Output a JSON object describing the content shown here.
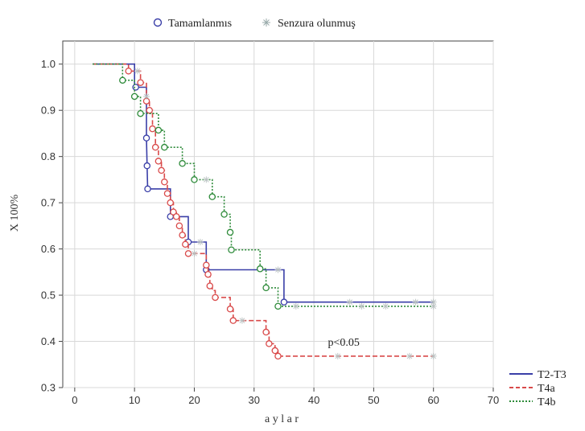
{
  "chart_data": {
    "type": "line",
    "subtype": "kaplan-meier",
    "title": "",
    "xlabel": "a y l a r",
    "ylabel": "X 100%",
    "xlim": [
      -2,
      70
    ],
    "ylim": [
      0.3,
      1.05
    ],
    "xticks": [
      0,
      10,
      20,
      30,
      40,
      50,
      60,
      70
    ],
    "yticks": [
      0.3,
      0.4,
      0.5,
      0.6,
      0.7,
      0.8,
      0.9,
      1.0
    ],
    "xtick_labels": [
      "0",
      "10",
      "20",
      "30",
      "40",
      "50",
      "60",
      "70"
    ],
    "ytick_labels": [
      "0.3",
      "0.4",
      "0.5",
      "0.6",
      "0.7",
      "0.8",
      "0.9",
      "1.0"
    ],
    "grid": true,
    "marker_legend": {
      "complete": "Tamamlanmıs",
      "censored": "Senzura olunmuş"
    },
    "legend_position": "bottom-right-outside",
    "annotation": {
      "text": "p<0.05",
      "x": 45,
      "y": 0.38
    },
    "series": [
      {
        "name": "T2-T3",
        "color": "#3a3fa8",
        "dash": "solid",
        "steps": [
          [
            3,
            1.0
          ],
          [
            10,
            1.0
          ],
          [
            10,
            0.95
          ],
          [
            12,
            0.95
          ],
          [
            12,
            0.84
          ],
          [
            12.1,
            0.78
          ],
          [
            12.2,
            0.73
          ],
          [
            16,
            0.73
          ],
          [
            16,
            0.67
          ],
          [
            19,
            0.67
          ],
          [
            19,
            0.615
          ],
          [
            22,
            0.615
          ],
          [
            22,
            0.555
          ],
          [
            35,
            0.555
          ],
          [
            35,
            0.485
          ],
          [
            60,
            0.485
          ]
        ],
        "events": [
          [
            10.2,
            0.95
          ],
          [
            12,
            0.84
          ],
          [
            12.1,
            0.78
          ],
          [
            12.2,
            0.73
          ],
          [
            16,
            0.67
          ],
          [
            19,
            0.615
          ],
          [
            22,
            0.555
          ],
          [
            35,
            0.485
          ]
        ],
        "censored": [
          [
            11,
            0.96
          ],
          [
            21,
            0.615
          ],
          [
            34,
            0.555
          ],
          [
            46,
            0.485
          ],
          [
            57,
            0.485
          ],
          [
            60,
            0.485
          ]
        ]
      },
      {
        "name": "T4a",
        "color": "#d94a4a",
        "dash": "dashed",
        "steps": [
          [
            3,
            1.0
          ],
          [
            9,
            1.0
          ],
          [
            9,
            0.985
          ],
          [
            11,
            0.985
          ],
          [
            11,
            0.96
          ],
          [
            12,
            0.96
          ],
          [
            12,
            0.92
          ],
          [
            12.5,
            0.92
          ],
          [
            12.5,
            0.9
          ],
          [
            13,
            0.9
          ],
          [
            13,
            0.86
          ],
          [
            13.5,
            0.86
          ],
          [
            13.5,
            0.82
          ],
          [
            14,
            0.82
          ],
          [
            14,
            0.79
          ],
          [
            14.5,
            0.79
          ],
          [
            14.5,
            0.77
          ],
          [
            15,
            0.77
          ],
          [
            15,
            0.745
          ],
          [
            15.5,
            0.745
          ],
          [
            15.5,
            0.72
          ],
          [
            16,
            0.72
          ],
          [
            16,
            0.7
          ],
          [
            16.5,
            0.7
          ],
          [
            16.5,
            0.68
          ],
          [
            17,
            0.68
          ],
          [
            17,
            0.67
          ],
          [
            17.5,
            0.67
          ],
          [
            17.5,
            0.65
          ],
          [
            18,
            0.65
          ],
          [
            18,
            0.63
          ],
          [
            18.5,
            0.63
          ],
          [
            18.5,
            0.61
          ],
          [
            19,
            0.61
          ],
          [
            19,
            0.59
          ],
          [
            22,
            0.59
          ],
          [
            22,
            0.565
          ],
          [
            22.3,
            0.565
          ],
          [
            22.3,
            0.545
          ],
          [
            22.6,
            0.545
          ],
          [
            22.6,
            0.52
          ],
          [
            23,
            0.52
          ],
          [
            23,
            0.51
          ],
          [
            23.5,
            0.51
          ],
          [
            23.5,
            0.495
          ],
          [
            26,
            0.495
          ],
          [
            26,
            0.47
          ],
          [
            26.5,
            0.47
          ],
          [
            26.5,
            0.445
          ],
          [
            32,
            0.445
          ],
          [
            32,
            0.42
          ],
          [
            32.5,
            0.42
          ],
          [
            32.5,
            0.395
          ],
          [
            33.5,
            0.395
          ],
          [
            33.5,
            0.38
          ],
          [
            34,
            0.38
          ],
          [
            34,
            0.368
          ],
          [
            60,
            0.368
          ]
        ],
        "events": [
          [
            9,
            0.985
          ],
          [
            11,
            0.96
          ],
          [
            12,
            0.92
          ],
          [
            12.5,
            0.9
          ],
          [
            13,
            0.86
          ],
          [
            13.5,
            0.82
          ],
          [
            14,
            0.79
          ],
          [
            14.5,
            0.77
          ],
          [
            15,
            0.745
          ],
          [
            15.5,
            0.72
          ],
          [
            16,
            0.7
          ],
          [
            16.5,
            0.68
          ],
          [
            17,
            0.67
          ],
          [
            17.5,
            0.65
          ],
          [
            18,
            0.63
          ],
          [
            18.5,
            0.61
          ],
          [
            19,
            0.59
          ],
          [
            22,
            0.565
          ],
          [
            22.3,
            0.545
          ],
          [
            22.6,
            0.52
          ],
          [
            23.5,
            0.495
          ],
          [
            26,
            0.47
          ],
          [
            26.5,
            0.445
          ],
          [
            32,
            0.42
          ],
          [
            32.5,
            0.395
          ],
          [
            33.5,
            0.38
          ],
          [
            34,
            0.368
          ]
        ],
        "censored": [
          [
            10.5,
            0.985
          ],
          [
            20,
            0.59
          ],
          [
            28,
            0.445
          ],
          [
            44,
            0.368
          ],
          [
            56,
            0.368
          ],
          [
            60,
            0.368
          ]
        ]
      },
      {
        "name": "T4b",
        "color": "#2e8b3a",
        "dash": "dotted",
        "steps": [
          [
            3,
            1.0
          ],
          [
            8,
            1.0
          ],
          [
            8,
            0.965
          ],
          [
            10,
            0.965
          ],
          [
            10,
            0.93
          ],
          [
            11,
            0.93
          ],
          [
            11,
            0.893
          ],
          [
            14,
            0.893
          ],
          [
            14,
            0.857
          ],
          [
            15,
            0.857
          ],
          [
            15,
            0.82
          ],
          [
            18,
            0.82
          ],
          [
            18,
            0.785
          ],
          [
            20,
            0.785
          ],
          [
            20,
            0.75
          ],
          [
            23,
            0.75
          ],
          [
            23,
            0.713
          ],
          [
            25,
            0.713
          ],
          [
            25,
            0.675
          ],
          [
            26,
            0.675
          ],
          [
            26,
            0.636
          ],
          [
            26.2,
            0.636
          ],
          [
            26.2,
            0.598
          ],
          [
            31,
            0.598
          ],
          [
            31,
            0.557
          ],
          [
            32,
            0.557
          ],
          [
            32,
            0.516
          ],
          [
            34,
            0.516
          ],
          [
            34,
            0.476
          ],
          [
            60,
            0.476
          ]
        ],
        "events": [
          [
            8,
            0.965
          ],
          [
            10,
            0.93
          ],
          [
            11,
            0.893
          ],
          [
            14,
            0.857
          ],
          [
            15,
            0.82
          ],
          [
            18,
            0.785
          ],
          [
            20,
            0.75
          ],
          [
            23,
            0.713
          ],
          [
            25,
            0.675
          ],
          [
            26,
            0.636
          ],
          [
            26.2,
            0.598
          ],
          [
            31,
            0.557
          ],
          [
            32,
            0.516
          ],
          [
            34,
            0.476
          ]
        ],
        "censored": [
          [
            12,
            0.93
          ],
          [
            22,
            0.75
          ],
          [
            37,
            0.476
          ],
          [
            48,
            0.476
          ],
          [
            52,
            0.476
          ],
          [
            60,
            0.476
          ]
        ]
      }
    ]
  }
}
